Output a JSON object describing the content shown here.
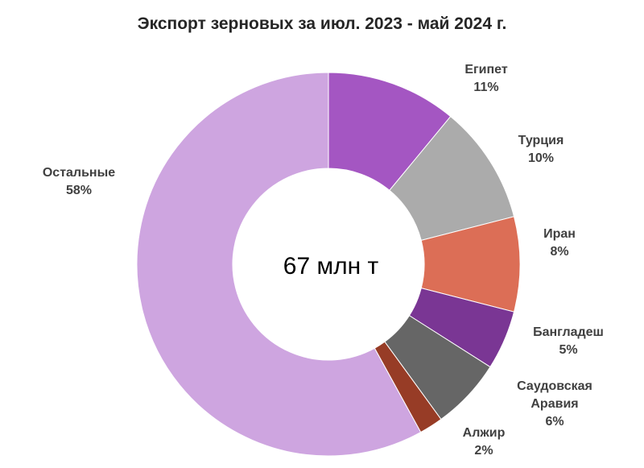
{
  "chart_data": {
    "type": "pie",
    "title": "Экспорт зерновых за июл. 2023 - май 2024 г.",
    "center_label": "67 млн т",
    "categories": [
      "Египет",
      "Турция",
      "Иран",
      "Бангладеш",
      "Саудовская Аравия",
      "Алжир",
      "Остальные"
    ],
    "values": [
      11,
      10,
      8,
      5,
      6,
      2,
      58
    ],
    "value_labels": [
      "11%",
      "10%",
      "8%",
      "5%",
      "6%",
      "2%",
      "58%"
    ],
    "colors": [
      "#a456c2",
      "#ababab",
      "#dc6e56",
      "#7a3694",
      "#666666",
      "#973c26",
      "#cea5e0"
    ],
    "donut": true,
    "legend": "none",
    "label_placement": "outside"
  }
}
